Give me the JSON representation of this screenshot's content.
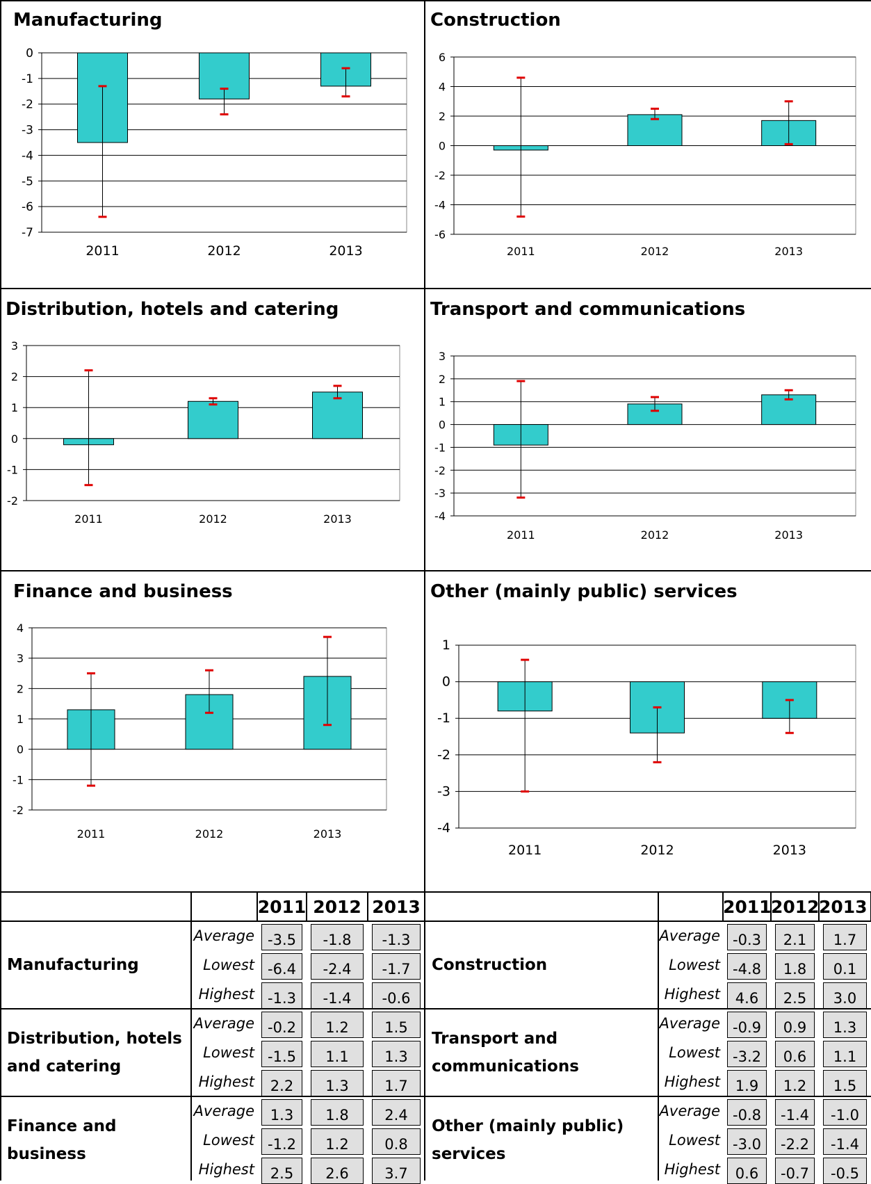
{
  "colors": {
    "bar": "#33cccc",
    "bar_edge": "#000000",
    "error_cap": "#e00000",
    "grid": "#000000",
    "cell_bg": "#e0e0e0"
  },
  "chart_data": [
    {
      "type": "bar",
      "title": "Manufacturing",
      "categories": [
        "2011",
        "2012",
        "2013"
      ],
      "series": [
        {
          "values": [
            -3.5,
            -1.8,
            -1.3
          ]
        }
      ],
      "error_low": [
        -6.4,
        -2.4,
        -1.7
      ],
      "error_high": [
        -1.3,
        -1.4,
        -0.6
      ],
      "ylim": [
        -7,
        0
      ],
      "yticks": [
        0,
        -1,
        -2,
        -3,
        -4,
        -5,
        -6,
        -7
      ],
      "grid": true
    },
    {
      "type": "bar",
      "title": "Construction",
      "categories": [
        "2011",
        "2012",
        "2013"
      ],
      "series": [
        {
          "values": [
            -0.3,
            2.1,
            1.7
          ]
        }
      ],
      "error_low": [
        -4.8,
        1.8,
        0.1
      ],
      "error_high": [
        4.6,
        2.5,
        3.0
      ],
      "ylim": [
        -6,
        6
      ],
      "yticks": [
        6,
        4,
        2,
        0,
        -2,
        -4,
        -6
      ],
      "grid": true
    },
    {
      "type": "bar",
      "title": "Distribution, hotels and catering",
      "categories": [
        "2011",
        "2012",
        "2013"
      ],
      "series": [
        {
          "values": [
            -0.2,
            1.2,
            1.5
          ]
        }
      ],
      "error_low": [
        -1.5,
        1.1,
        1.3
      ],
      "error_high": [
        2.2,
        1.3,
        1.7
      ],
      "ylim": [
        -2,
        3
      ],
      "yticks": [
        3,
        2,
        1,
        0,
        -1,
        -2
      ],
      "grid": true
    },
    {
      "type": "bar",
      "title": "Transport and communications",
      "categories": [
        "2011",
        "2012",
        "2013"
      ],
      "series": [
        {
          "values": [
            -0.9,
            0.9,
            1.3
          ]
        }
      ],
      "error_low": [
        -3.2,
        0.6,
        1.1
      ],
      "error_high": [
        1.9,
        1.2,
        1.5
      ],
      "ylim": [
        -4,
        3
      ],
      "yticks": [
        3,
        2,
        1,
        0,
        -1,
        -2,
        -3,
        -4
      ],
      "grid": true
    },
    {
      "type": "bar",
      "title": "Finance and business",
      "categories": [
        "2011",
        "2012",
        "2013"
      ],
      "series": [
        {
          "values": [
            1.3,
            1.8,
            2.4
          ]
        }
      ],
      "error_low": [
        -1.2,
        1.2,
        0.8
      ],
      "error_high": [
        2.5,
        2.6,
        3.7
      ],
      "ylim": [
        -2,
        4
      ],
      "yticks": [
        4,
        3,
        2,
        1,
        0,
        -1,
        -2
      ],
      "grid": true
    },
    {
      "type": "bar",
      "title": "Other (mainly public) services",
      "categories": [
        "2011",
        "2012",
        "2013"
      ],
      "series": [
        {
          "values": [
            -0.8,
            -1.4,
            -1.0
          ]
        }
      ],
      "error_low": [
        -3.0,
        -2.2,
        -1.4
      ],
      "error_high": [
        0.6,
        -0.7,
        -0.5
      ],
      "ylim": [
        -4,
        1
      ],
      "yticks": [
        1,
        0,
        -1,
        -2,
        -3,
        -4
      ],
      "grid": true
    }
  ],
  "table": {
    "years": [
      "2011",
      "2012",
      "2013"
    ],
    "row_labels": [
      "Average",
      "Lowest",
      "Highest"
    ],
    "left": [
      {
        "sector": "Manufacturing",
        "values": [
          [
            "-3.5",
            "-1.8",
            "-1.3"
          ],
          [
            "-6.4",
            "-2.4",
            "-1.7"
          ],
          [
            "-1.3",
            "-1.4",
            "-0.6"
          ]
        ]
      },
      {
        "sector": "Distribution, hotels and catering",
        "values": [
          [
            "-0.2",
            "1.2",
            "1.5"
          ],
          [
            "-1.5",
            "1.1",
            "1.3"
          ],
          [
            "2.2",
            "1.3",
            "1.7"
          ]
        ]
      },
      {
        "sector": "Finance and business",
        "values": [
          [
            "1.3",
            "1.8",
            "2.4"
          ],
          [
            "-1.2",
            "1.2",
            "0.8"
          ],
          [
            "2.5",
            "2.6",
            "3.7"
          ]
        ]
      }
    ],
    "right": [
      {
        "sector": "Construction",
        "values": [
          [
            "-0.3",
            "2.1",
            "1.7"
          ],
          [
            "-4.8",
            "1.8",
            "0.1"
          ],
          [
            "4.6",
            "2.5",
            "3.0"
          ]
        ]
      },
      {
        "sector": "Transport and communications",
        "values": [
          [
            "-0.9",
            "0.9",
            "1.3"
          ],
          [
            "-3.2",
            "0.6",
            "1.1"
          ],
          [
            "1.9",
            "1.2",
            "1.5"
          ]
        ]
      },
      {
        "sector": "Other (mainly public) services",
        "values": [
          [
            "-0.8",
            "-1.4",
            "-1.0"
          ],
          [
            "-3.0",
            "-2.2",
            "-1.4"
          ],
          [
            "0.6",
            "-0.7",
            "-0.5"
          ]
        ]
      }
    ]
  }
}
